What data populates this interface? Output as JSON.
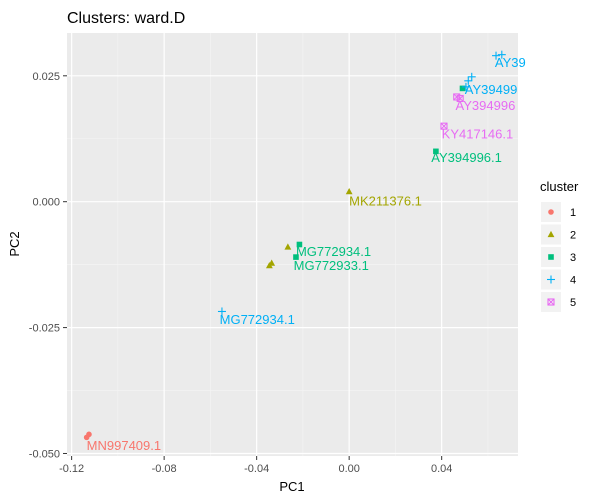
{
  "chart_data": {
    "type": "scatter",
    "title": "Clusters: ward.D",
    "xlabel": "PC1",
    "ylabel": "PC2",
    "xlim": [
      -0.122,
      0.073
    ],
    "ylim": [
      -0.0505,
      0.0335
    ],
    "x_ticks": [
      -0.12,
      -0.08,
      -0.04,
      0.0,
      0.04
    ],
    "x_tick_labels": [
      "-0.12",
      "-0.08",
      "-0.04",
      "0.00",
      "0.04"
    ],
    "y_ticks": [
      -0.05,
      -0.025,
      0.0,
      0.025
    ],
    "y_tick_labels": [
      "-0.050",
      "-0.025",
      "0.000",
      "0.025"
    ],
    "grid": true,
    "legend": {
      "title": "cluster",
      "position": "right",
      "entries": [
        {
          "label": "1",
          "color": "#F8766D",
          "shape": "circle"
        },
        {
          "label": "2",
          "color": "#A3A500",
          "shape": "triangle"
        },
        {
          "label": "3",
          "color": "#00BF7D",
          "shape": "square"
        },
        {
          "label": "4",
          "color": "#00B0F6",
          "shape": "plus"
        },
        {
          "label": "5",
          "color": "#E76BF3",
          "shape": "boxcross"
        }
      ]
    },
    "series": [
      {
        "cluster": "1",
        "points": [
          {
            "x": -0.1135,
            "y": -0.0468
          },
          {
            "x": -0.1125,
            "y": -0.0462
          }
        ]
      },
      {
        "cluster": "2",
        "points": [
          {
            "x": -0.0345,
            "y": -0.0127
          },
          {
            "x": -0.0335,
            "y": -0.0122
          },
          {
            "x": -0.0265,
            "y": -0.009
          },
          {
            "x": 0.0,
            "y": 0.002
          }
        ]
      },
      {
        "cluster": "3",
        "points": [
          {
            "x": -0.0215,
            "y": -0.0085
          },
          {
            "x": -0.023,
            "y": -0.011
          },
          {
            "x": 0.0375,
            "y": 0.01
          },
          {
            "x": 0.049,
            "y": 0.0225
          }
        ]
      },
      {
        "cluster": "4",
        "points": [
          {
            "x": -0.055,
            "y": -0.0218
          },
          {
            "x": 0.0505,
            "y": 0.0228
          },
          {
            "x": 0.0515,
            "y": 0.024
          },
          {
            "x": 0.053,
            "y": 0.0248
          },
          {
            "x": 0.0635,
            "y": 0.029
          },
          {
            "x": 0.066,
            "y": 0.0292
          }
        ]
      },
      {
        "cluster": "5",
        "points": [
          {
            "x": 0.048,
            "y": 0.0205
          },
          {
            "x": 0.0465,
            "y": 0.0208
          },
          {
            "x": 0.041,
            "y": 0.015
          }
        ]
      }
    ],
    "annotations": [
      {
        "text": "MN997409.1",
        "x": -0.1135,
        "y": -0.0485,
        "cluster": "1"
      },
      {
        "text": "MK211376.1",
        "x": 0.0,
        "y": 0.0,
        "cluster": "2"
      },
      {
        "text": "MG772934.1",
        "x": -0.023,
        "y": -0.01,
        "cluster": "3"
      },
      {
        "text": "MG772933.1",
        "x": -0.024,
        "y": -0.0128,
        "cluster": "3"
      },
      {
        "text": "AY394996.1",
        "x": 0.0355,
        "y": 0.0087,
        "cluster": "3"
      },
      {
        "text": "MG772934.1",
        "x": -0.056,
        "y": -0.0235,
        "cluster": "4"
      },
      {
        "text": "AY39499",
        "x": 0.05,
        "y": 0.0222,
        "cluster": "4"
      },
      {
        "text": "AY39",
        "x": 0.063,
        "y": 0.0275,
        "cluster": "4"
      },
      {
        "text": "AY394996",
        "x": 0.046,
        "y": 0.019,
        "cluster": "5"
      },
      {
        "text": "KY417146.1",
        "x": 0.04,
        "y": 0.0133,
        "cluster": "5"
      }
    ]
  }
}
